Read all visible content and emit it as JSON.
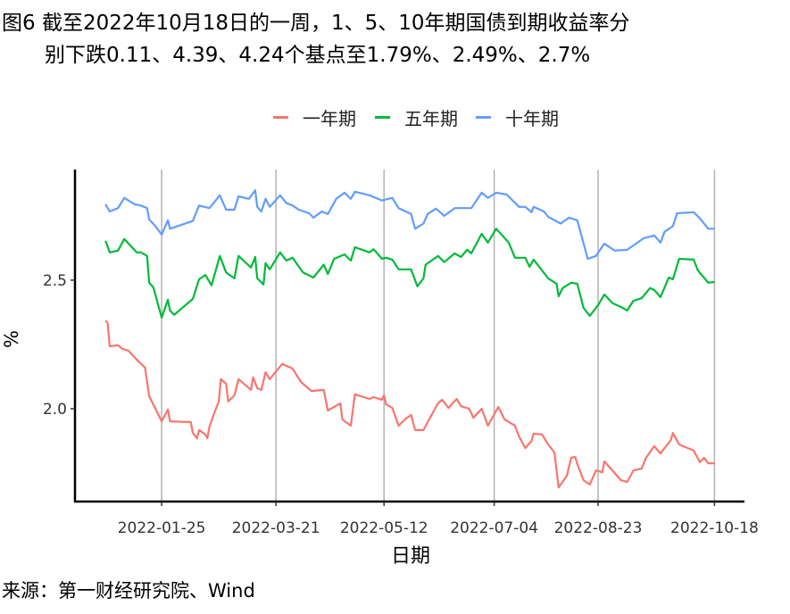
{
  "title": {
    "line1": "图6  截至2022年10月18日的一周，1、5、10年期国债到期收益率分",
    "line2": "别下跌0.11、4.39、4.24个基点至1.79%、2.49%、2.7%"
  },
  "source": "来源：第一财经研究院、Wind",
  "chart_data": {
    "type": "line",
    "xlabel": "日期",
    "ylabel": "%",
    "x_unit": "day of year 2022",
    "xlim": [
      -16.7,
      305
    ],
    "ylim": [
      1.639,
      2.93
    ],
    "x_ticks": [
      {
        "day": 25,
        "label": "2022-01-25"
      },
      {
        "day": 80,
        "label": "2022-03-21"
      },
      {
        "day": 132,
        "label": "2022-05-12"
      },
      {
        "day": 185,
        "label": "2022-07-04"
      },
      {
        "day": 235,
        "label": "2022-08-23"
      },
      {
        "day": 291,
        "label": "2022-10-18"
      }
    ],
    "y_ticks": [
      {
        "value": 2.0,
        "label": "2.0"
      },
      {
        "value": 2.5,
        "label": "2.5"
      }
    ],
    "grid": "vertical at x ticks",
    "legend_position": "top",
    "series": [
      {
        "name": "一年期",
        "color": "#F8766D",
        "points": [
          [
            -2,
            2.344
          ],
          [
            -1,
            2.333
          ],
          [
            0,
            2.243
          ],
          [
            4,
            2.247
          ],
          [
            6,
            2.233
          ],
          [
            9,
            2.226
          ],
          [
            13,
            2.191
          ],
          [
            17,
            2.16
          ],
          [
            19,
            2.049
          ],
          [
            25,
            1.951
          ],
          [
            28,
            1.997
          ],
          [
            29,
            1.951
          ],
          [
            39,
            1.948
          ],
          [
            40,
            1.906
          ],
          [
            42,
            1.885
          ],
          [
            43,
            1.917
          ],
          [
            46,
            1.9
          ],
          [
            47,
            1.885
          ],
          [
            48,
            1.93
          ],
          [
            50,
            1.976
          ],
          [
            52.5,
            2.028
          ],
          [
            53.5,
            2.115
          ],
          [
            56,
            2.097
          ],
          [
            57,
            2.028
          ],
          [
            60,
            2.052
          ],
          [
            62,
            2.115
          ],
          [
            68,
            2.073
          ],
          [
            69,
            2.122
          ],
          [
            71,
            2.08
          ],
          [
            73,
            2.073
          ],
          [
            75,
            2.142
          ],
          [
            77,
            2.115
          ],
          [
            83,
            2.174
          ],
          [
            88,
            2.156
          ],
          [
            92,
            2.104
          ],
          [
            97,
            2.069
          ],
          [
            103,
            2.073
          ],
          [
            105,
            1.993
          ],
          [
            111,
            2.021
          ],
          [
            112,
            1.958
          ],
          [
            116,
            1.934
          ],
          [
            118,
            2.056
          ],
          [
            125,
            2.038
          ],
          [
            127,
            2.045
          ],
          [
            131,
            2.035
          ],
          [
            132,
            2.052
          ],
          [
            133,
            2.017
          ],
          [
            136,
            2.003
          ],
          [
            139,
            1.934
          ],
          [
            142,
            1.958
          ],
          [
            145,
            1.976
          ],
          [
            147,
            1.917
          ],
          [
            151,
            1.917
          ],
          [
            153,
            1.948
          ],
          [
            158,
            2.021
          ],
          [
            160,
            2.035
          ],
          [
            163,
            2.003
          ],
          [
            167,
            2.038
          ],
          [
            169,
            2.01
          ],
          [
            173,
            2.0
          ],
          [
            175,
            1.965
          ],
          [
            179,
            2.0
          ],
          [
            182,
            1.934
          ],
          [
            187,
            2.007
          ],
          [
            190,
            1.958
          ],
          [
            195,
            1.934
          ],
          [
            197,
            1.892
          ],
          [
            200,
            1.847
          ],
          [
            203,
            1.875
          ],
          [
            204,
            1.903
          ],
          [
            208,
            1.9
          ],
          [
            211,
            1.861
          ],
          [
            214,
            1.83
          ],
          [
            215,
            1.76
          ],
          [
            216,
            1.694
          ],
          [
            220,
            1.74
          ],
          [
            222,
            1.809
          ],
          [
            224,
            1.8125
          ],
          [
            225,
            1.785
          ],
          [
            228,
            1.722
          ],
          [
            231,
            1.705
          ],
          [
            234,
            1.76
          ],
          [
            237,
            1.753
          ],
          [
            238,
            1.795
          ],
          [
            243,
            1.75
          ],
          [
            246,
            1.722
          ],
          [
            249,
            1.715
          ],
          [
            252,
            1.76
          ],
          [
            256,
            1.767
          ],
          [
            258,
            1.809
          ],
          [
            262,
            1.854
          ],
          [
            265,
            1.826
          ],
          [
            270,
            1.878
          ],
          [
            271,
            1.906
          ],
          [
            274,
            1.861
          ],
          [
            281,
            1.837
          ],
          [
            284,
            1.792
          ],
          [
            286,
            1.809
          ],
          [
            288,
            1.788
          ],
          [
            291,
            1.788
          ]
        ]
      },
      {
        "name": "五年期",
        "color": "#00BA38",
        "points": [
          [
            -2,
            2.653
          ],
          [
            0,
            2.608
          ],
          [
            4,
            2.615
          ],
          [
            7,
            2.66
          ],
          [
            13,
            2.608
          ],
          [
            15,
            2.608
          ],
          [
            18,
            2.594
          ],
          [
            19,
            2.49
          ],
          [
            21,
            2.472
          ],
          [
            25,
            2.354
          ],
          [
            28,
            2.424
          ],
          [
            29,
            2.382
          ],
          [
            31,
            2.365
          ],
          [
            40,
            2.427
          ],
          [
            43,
            2.503
          ],
          [
            46,
            2.52
          ],
          [
            49,
            2.48
          ],
          [
            53,
            2.594
          ],
          [
            56,
            2.53
          ],
          [
            60,
            2.507
          ],
          [
            62,
            2.594
          ],
          [
            68,
            2.549
          ],
          [
            70,
            2.59
          ],
          [
            71,
            2.507
          ],
          [
            74,
            2.483
          ],
          [
            75,
            2.566
          ],
          [
            77,
            2.542
          ],
          [
            82,
            2.608
          ],
          [
            85,
            2.576
          ],
          [
            88,
            2.587
          ],
          [
            93,
            2.53
          ],
          [
            98,
            2.51
          ],
          [
            103,
            2.56
          ],
          [
            105,
            2.524
          ],
          [
            108,
            2.583
          ],
          [
            113,
            2.6
          ],
          [
            116,
            2.576
          ],
          [
            118,
            2.628
          ],
          [
            125,
            2.608
          ],
          [
            127,
            2.62
          ],
          [
            131,
            2.583
          ],
          [
            133,
            2.587
          ],
          [
            136,
            2.58
          ],
          [
            139,
            2.542
          ],
          [
            145,
            2.542
          ],
          [
            148,
            2.476
          ],
          [
            151,
            2.507
          ],
          [
            152,
            2.56
          ],
          [
            158,
            2.594
          ],
          [
            161,
            2.57
          ],
          [
            166,
            2.604
          ],
          [
            169,
            2.59
          ],
          [
            172,
            2.618
          ],
          [
            174,
            2.604
          ],
          [
            179,
            2.68
          ],
          [
            182,
            2.646
          ],
          [
            186,
            2.7
          ],
          [
            192,
            2.646
          ],
          [
            195,
            2.587
          ],
          [
            200,
            2.587
          ],
          [
            202,
            2.552
          ],
          [
            204,
            2.58
          ],
          [
            208,
            2.538
          ],
          [
            211,
            2.507
          ],
          [
            215,
            2.486
          ],
          [
            216,
            2.4375
          ],
          [
            218,
            2.469
          ],
          [
            222,
            2.49
          ],
          [
            225,
            2.486
          ],
          [
            228,
            2.392
          ],
          [
            231,
            2.361
          ],
          [
            235,
            2.403
          ],
          [
            238,
            2.444
          ],
          [
            242,
            2.41
          ],
          [
            246,
            2.396
          ],
          [
            249,
            2.382
          ],
          [
            252,
            2.42
          ],
          [
            256,
            2.43
          ],
          [
            260,
            2.469
          ],
          [
            262,
            2.462
          ],
          [
            265,
            2.434
          ],
          [
            269,
            2.51
          ],
          [
            271,
            2.503
          ],
          [
            274,
            2.583
          ],
          [
            281,
            2.58
          ],
          [
            283,
            2.538
          ],
          [
            288,
            2.49
          ],
          [
            291,
            2.493
          ]
        ]
      },
      {
        "name": "十年期",
        "color": "#619CFF",
        "points": [
          [
            -2,
            2.795
          ],
          [
            0,
            2.767
          ],
          [
            4,
            2.78
          ],
          [
            7,
            2.82
          ],
          [
            12,
            2.795
          ],
          [
            15,
            2.79
          ],
          [
            18,
            2.78
          ],
          [
            19,
            2.736
          ],
          [
            22,
            2.71
          ],
          [
            25,
            2.677
          ],
          [
            28,
            2.733
          ],
          [
            29,
            2.7
          ],
          [
            40,
            2.73
          ],
          [
            43,
            2.79
          ],
          [
            48,
            2.78
          ],
          [
            53,
            2.83
          ],
          [
            56,
            2.774
          ],
          [
            60,
            2.774
          ],
          [
            62,
            2.826
          ],
          [
            67,
            2.816
          ],
          [
            70,
            2.85
          ],
          [
            71,
            2.785
          ],
          [
            73,
            2.767
          ],
          [
            75,
            2.816
          ],
          [
            77,
            2.785
          ],
          [
            82,
            2.83
          ],
          [
            85,
            2.8
          ],
          [
            88,
            2.79
          ],
          [
            91,
            2.774
          ],
          [
            96,
            2.76
          ],
          [
            98,
            2.743
          ],
          [
            102,
            2.767
          ],
          [
            105,
            2.757
          ],
          [
            109,
            2.816
          ],
          [
            113,
            2.84
          ],
          [
            116,
            2.816
          ],
          [
            118,
            2.844
          ],
          [
            125,
            2.83
          ],
          [
            131,
            2.81
          ],
          [
            136,
            2.82
          ],
          [
            139,
            2.78
          ],
          [
            145,
            2.757
          ],
          [
            147,
            2.7
          ],
          [
            151,
            2.72
          ],
          [
            153,
            2.757
          ],
          [
            157,
            2.778
          ],
          [
            161,
            2.75
          ],
          [
            166,
            2.78
          ],
          [
            174,
            2.78
          ],
          [
            179,
            2.84
          ],
          [
            182,
            2.82
          ],
          [
            186,
            2.84
          ],
          [
            191,
            2.833
          ],
          [
            197,
            2.785
          ],
          [
            200,
            2.785
          ],
          [
            203,
            2.764
          ],
          [
            204,
            2.785
          ],
          [
            209,
            2.767
          ],
          [
            211,
            2.746
          ],
          [
            217,
            2.72
          ],
          [
            221,
            2.743
          ],
          [
            225,
            2.733
          ],
          [
            230,
            2.583
          ],
          [
            234,
            2.594
          ],
          [
            238,
            2.642
          ],
          [
            243,
            2.615
          ],
          [
            249,
            2.618
          ],
          [
            252,
            2.635
          ],
          [
            257,
            2.663
          ],
          [
            262,
            2.674
          ],
          [
            265,
            2.646
          ],
          [
            267,
            2.688
          ],
          [
            271,
            2.71
          ],
          [
            273,
            2.76
          ],
          [
            281,
            2.764
          ],
          [
            284,
            2.74
          ],
          [
            288,
            2.7
          ],
          [
            291,
            2.7
          ]
        ]
      }
    ]
  }
}
